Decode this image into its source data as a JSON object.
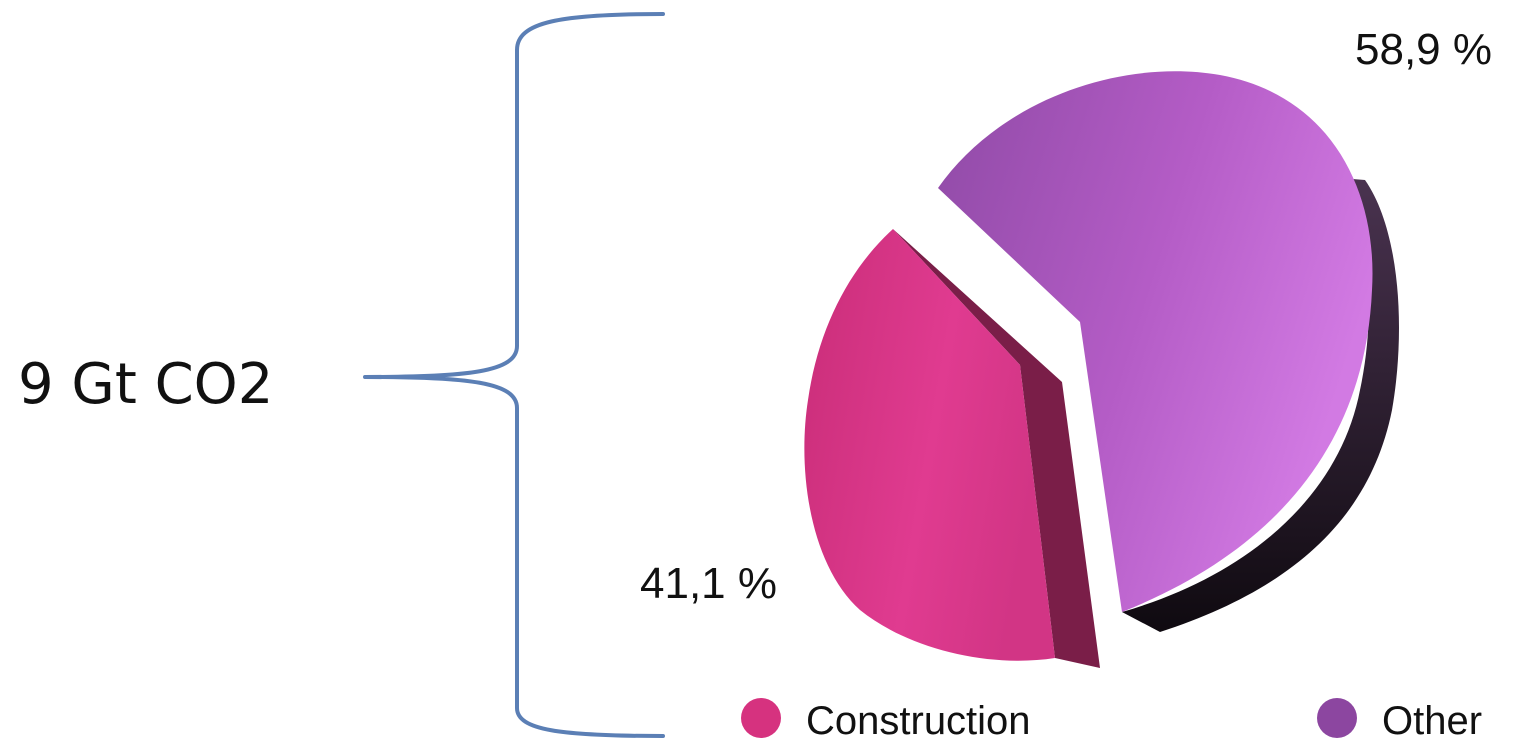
{
  "annotation": {
    "total_label": "9 Gt CO2",
    "brace_color": "#5b7fb5"
  },
  "chart_data": {
    "type": "pie",
    "title": "",
    "slices": [
      {
        "name": "Construction",
        "value": 41.1,
        "label": "41,1 %",
        "color": "#dd3b8e",
        "side_color": "#7a1e48"
      },
      {
        "name": "Other",
        "value": 58.9,
        "label": "58,9 %",
        "color": "#b25bc4",
        "side_color": "#2a1a2e"
      }
    ],
    "legend": {
      "placement": "bottom",
      "items": [
        {
          "label": "Construction",
          "color": "#d6327f"
        },
        {
          "label": "Other",
          "color": "#8c46a0"
        }
      ]
    }
  }
}
